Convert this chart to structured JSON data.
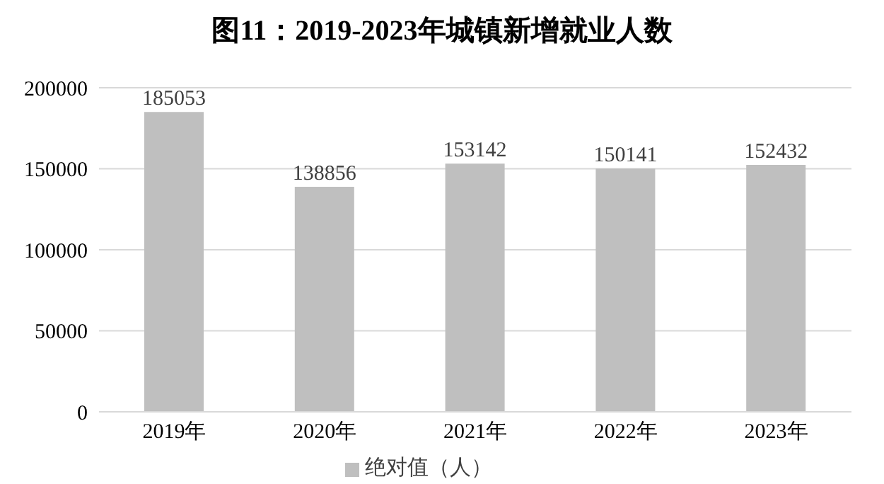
{
  "chart_data": {
    "type": "bar",
    "title": "图11：2019-2023年城镇新增就业人数",
    "categories": [
      "2019年",
      "2020年",
      "2021年",
      "2022年",
      "2023年"
    ],
    "series": [
      {
        "name": "绝对值（人）",
        "color": "#bfbfbf",
        "values": [
          185053,
          138856,
          153142,
          150141,
          152432
        ]
      }
    ],
    "ylim": [
      0,
      200000
    ],
    "yticks": [
      0,
      50000,
      100000,
      150000,
      200000
    ],
    "grid": "y",
    "legend": "bottom",
    "data_labels": true
  }
}
